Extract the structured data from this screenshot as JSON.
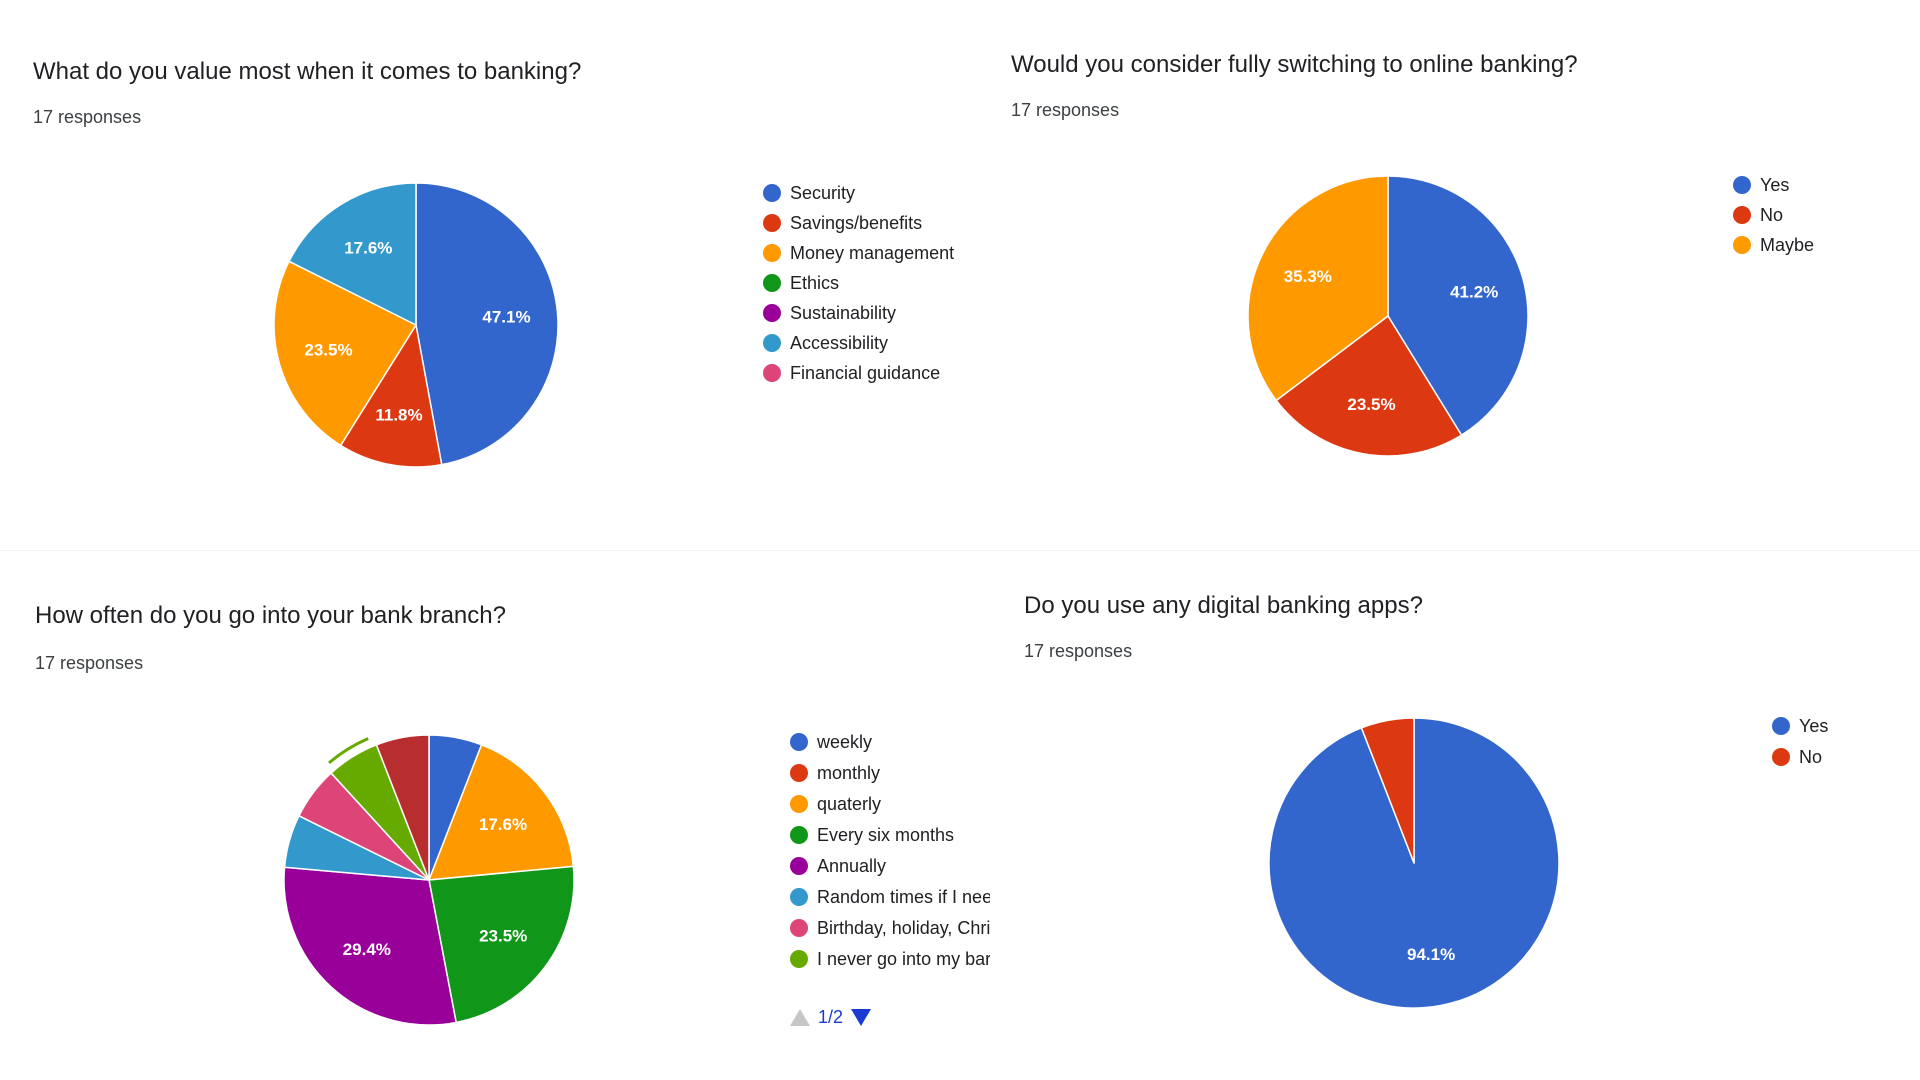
{
  "charts": [
    {
      "title": "What do you value most when it comes to banking?",
      "responses": "17 responses"
    },
    {
      "title": "Would you consider fully switching to online banking?",
      "responses": "17 responses"
    },
    {
      "title": "How often do you go into your bank branch?",
      "responses": "17 responses"
    },
    {
      "title": "Do you use any digital banking apps?",
      "responses": "17 responses"
    }
  ],
  "pager": {
    "text": "1/2"
  },
  "chart_data": [
    {
      "type": "pie",
      "title": "What do you value most when it comes to banking?",
      "subtitle": "17 responses",
      "legend_position": "right",
      "start_angle_deg": 90,
      "slices": [
        {
          "label": "Security",
          "value": 47.1,
          "display": "47.1%",
          "color": "#3366cc"
        },
        {
          "label": "Savings/benefits",
          "value": 11.8,
          "display": "11.8%",
          "color": "#dc3912"
        },
        {
          "label": "Money management",
          "value": 23.5,
          "display": "23.5%",
          "color": "#ff9900"
        },
        {
          "label": "Accessibility",
          "value": 17.6,
          "display": "17.6%",
          "color": "#3399cc"
        }
      ],
      "legend": [
        {
          "label": "Security",
          "color": "#3366cc"
        },
        {
          "label": "Savings/benefits",
          "color": "#dc3912"
        },
        {
          "label": "Money management",
          "color": "#ff9900"
        },
        {
          "label": "Ethics",
          "color": "#109618"
        },
        {
          "label": "Sustainability",
          "color": "#990099"
        },
        {
          "label": "Accessibility",
          "color": "#3399cc"
        },
        {
          "label": "Financial guidance",
          "color": "#dd4477"
        }
      ]
    },
    {
      "type": "pie",
      "title": "Would you consider fully switching to online banking?",
      "subtitle": "17 responses",
      "legend_position": "right",
      "start_angle_deg": 90,
      "slices": [
        {
          "label": "Yes",
          "value": 41.2,
          "display": "41.2%",
          "color": "#3366cc"
        },
        {
          "label": "No",
          "value": 23.5,
          "display": "23.5%",
          "color": "#dc3912"
        },
        {
          "label": "Maybe",
          "value": 35.3,
          "display": "35.3%",
          "color": "#ff9900"
        }
      ],
      "legend": [
        {
          "label": "Yes",
          "color": "#3366cc"
        },
        {
          "label": "No",
          "color": "#dc3912"
        },
        {
          "label": "Maybe",
          "color": "#ff9900"
        }
      ]
    },
    {
      "type": "pie",
      "title": "How often do you go into your bank branch?",
      "subtitle": "17 responses",
      "legend_position": "right",
      "start_angle_deg": 90,
      "slices": [
        {
          "label": "weekly",
          "value": 5.9,
          "display": "",
          "color": "#3366cc"
        },
        {
          "label": "monthly",
          "value": 0,
          "display": "",
          "color": "#dc3912"
        },
        {
          "label": "quaterly",
          "value": 17.6,
          "display": "17.6%",
          "color": "#ff9900"
        },
        {
          "label": "Every six months",
          "value": 23.5,
          "display": "23.5%",
          "color": "#109618"
        },
        {
          "label": "Annually",
          "value": 29.4,
          "display": "29.4%",
          "color": "#990099"
        },
        {
          "label": "Random times if I nee",
          "value": 5.9,
          "display": "",
          "color": "#3399cc"
        },
        {
          "label": "Birthday, holiday, Chri",
          "value": 5.9,
          "display": "",
          "color": "#dd4477"
        },
        {
          "label": "I never go into my bar",
          "value": 5.9,
          "display": "",
          "color": "#66aa00"
        },
        {
          "label": "",
          "value": 5.9,
          "display": "",
          "color": "#b82e2e"
        }
      ],
      "legend": [
        {
          "label": "weekly",
          "color": "#3366cc"
        },
        {
          "label": "monthly",
          "color": "#dc3912"
        },
        {
          "label": "quaterly",
          "color": "#ff9900"
        },
        {
          "label": "Every six months",
          "color": "#109618"
        },
        {
          "label": "Annually",
          "color": "#990099"
        },
        {
          "label": "Random times if I nee",
          "color": "#3399cc"
        },
        {
          "label": "Birthday, holiday, Chri",
          "color": "#dd4477"
        },
        {
          "label": "I never go into my bar",
          "color": "#66aa00"
        }
      ]
    },
    {
      "type": "pie",
      "title": "Do you use any digital banking apps?",
      "subtitle": "17 responses",
      "legend_position": "right",
      "start_angle_deg": 90,
      "slices": [
        {
          "label": "Yes",
          "value": 94.1,
          "display": "94.1%",
          "color": "#3366cc"
        },
        {
          "label": "No",
          "value": 5.9,
          "display": "",
          "color": "#dc3912"
        }
      ],
      "legend": [
        {
          "label": "Yes",
          "color": "#3366cc"
        },
        {
          "label": "No",
          "color": "#dc3912"
        }
      ]
    }
  ]
}
